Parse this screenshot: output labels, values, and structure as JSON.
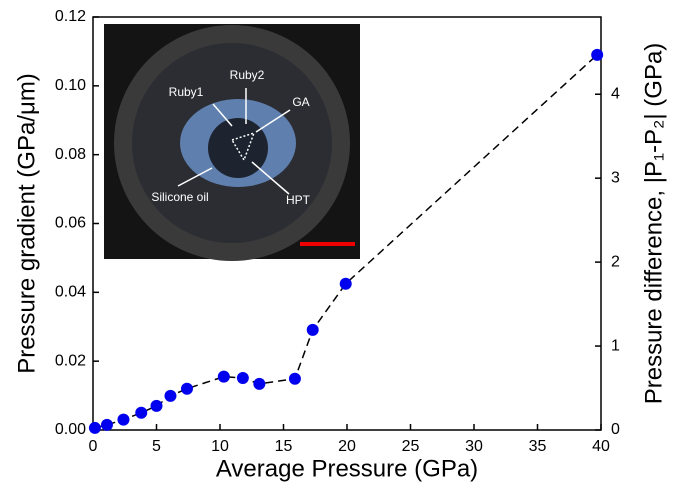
{
  "chart_data": {
    "type": "line",
    "x_label": "Average Pressure (GPa)",
    "y_label": "Pressure gradient (GPa/μm)",
    "y2_label": "Pressure difference, |P₁-P₂| (GPa)",
    "x": [
      0.15,
      1.1,
      2.4,
      3.8,
      5.0,
      6.1,
      7.4,
      10.3,
      11.8,
      13.1,
      15.9,
      17.3,
      19.9,
      39.7
    ],
    "values": [
      0.0006,
      0.0015,
      0.003,
      0.005,
      0.007,
      0.0099,
      0.012,
      0.0155,
      0.0151,
      0.0134,
      0.0149,
      0.0291,
      0.0425,
      0.109
    ],
    "color": "#0000ee",
    "line_style": "dashed",
    "xlim": [
      0,
      40
    ],
    "xticks": [
      0,
      5,
      10,
      15,
      20,
      25,
      30,
      35,
      40
    ],
    "ylim": [
      0,
      0.12
    ],
    "yticks": [
      {
        "value": 0,
        "label": "0.00"
      },
      0.02,
      0.04,
      0.06,
      0.08,
      {
        "value": 0.1,
        "label": "0.10"
      },
      0.12
    ],
    "y2lim": [
      0,
      4.92
    ],
    "y2ticks": [
      0,
      1,
      2,
      3,
      4
    ],
    "inset_labels": [
      "Ruby1",
      "Ruby2",
      "GA",
      "Silicone oil",
      "HPT"
    ]
  }
}
